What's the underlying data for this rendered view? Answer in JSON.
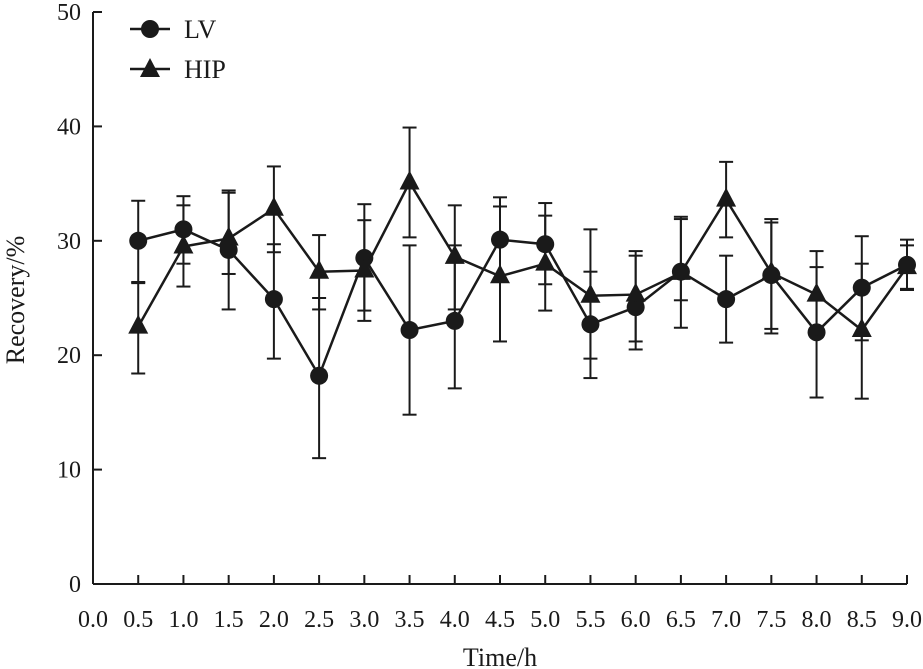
{
  "chart_data": {
    "type": "line",
    "title": "",
    "xlabel": "Time/h",
    "ylabel": "Recovery/%",
    "xlim": [
      0.0,
      9.0
    ],
    "ylim": [
      0,
      50
    ],
    "x_ticks": [
      "0.0",
      "0.5",
      "1.0",
      "1.5",
      "2.0",
      "2.5",
      "3.0",
      "3.5",
      "4.0",
      "4.5",
      "5.0",
      "5.5",
      "6.0",
      "6.5",
      "7.0",
      "7.5",
      "8.0",
      "8.5",
      "9.0"
    ],
    "y_ticks": [
      "0",
      "10",
      "20",
      "30",
      "40",
      "50"
    ],
    "grid": false,
    "legend_position": "top-left",
    "x": [
      0.5,
      1.0,
      1.5,
      2.0,
      2.5,
      3.0,
      3.5,
      4.0,
      4.5,
      5.0,
      5.5,
      6.0,
      6.5,
      7.0,
      7.5,
      8.0,
      8.5,
      9.0
    ],
    "series": [
      {
        "name": "LV",
        "marker": "circle",
        "values": [
          30.0,
          31.0,
          29.2,
          24.9,
          18.2,
          28.5,
          22.2,
          23.0,
          30.1,
          29.7,
          22.7,
          24.2,
          27.3,
          24.9,
          27.0,
          22.0,
          25.9,
          27.9
        ],
        "err_low": [
          26.3,
          28.0,
          24.0,
          19.7,
          11.0,
          23.9,
          14.8,
          17.1,
          26.5,
          26.2,
          18.0,
          20.5,
          22.4,
          21.1,
          22.3,
          16.3,
          21.3,
          25.7
        ],
        "err_high": [
          33.5,
          33.9,
          34.4,
          29.7,
          25.0,
          33.2,
          29.6,
          29.6,
          33.8,
          33.3,
          27.3,
          28.7,
          31.9,
          28.7,
          31.6,
          27.7,
          30.4,
          30.1
        ]
      },
      {
        "name": "HIP",
        "marker": "triangle",
        "values": [
          22.5,
          29.5,
          30.2,
          32.8,
          27.3,
          27.4,
          35.1,
          28.6,
          26.9,
          28.0,
          25.2,
          25.3,
          27.2,
          33.6,
          27.2,
          25.3,
          22.2,
          27.7
        ],
        "err_low": [
          18.4,
          26.0,
          27.1,
          29.0,
          24.0,
          23.0,
          30.3,
          24.0,
          21.2,
          23.9,
          19.7,
          21.2,
          24.8,
          30.3,
          21.9,
          21.6,
          16.2,
          25.8
        ],
        "err_high": [
          26.4,
          33.1,
          34.2,
          36.5,
          30.5,
          31.8,
          39.9,
          33.1,
          33.0,
          32.2,
          31.0,
          29.1,
          32.1,
          36.9,
          31.9,
          29.1,
          28.0,
          29.6
        ]
      }
    ]
  }
}
